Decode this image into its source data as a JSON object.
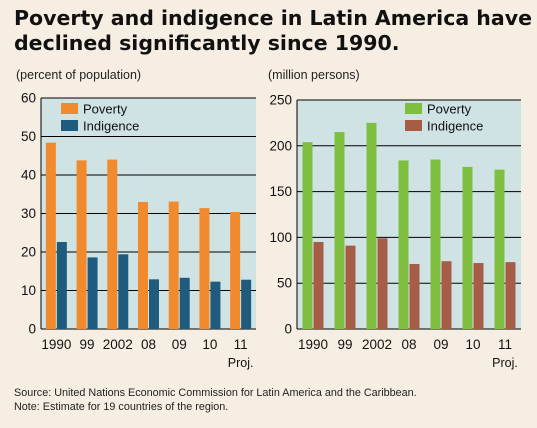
{
  "title_line1": "Poverty and indigence in Latin America have",
  "title_line2": "declined significantly since 1990.",
  "footer": {
    "source": "Source: United Nations Economic Commission for Latin America and the Caribbean.",
    "note": "Note: Estimate for 19 countries of the region."
  },
  "chart_data": [
    {
      "type": "bar",
      "unit_label": "(percent of population)",
      "categories": [
        "1990",
        "99",
        "2002",
        "08",
        "09",
        "10",
        "11"
      ],
      "projection_label": "Proj.",
      "ylim": [
        0,
        60
      ],
      "yticks": [
        0,
        10,
        20,
        30,
        40,
        50,
        60
      ],
      "grid": true,
      "legend": "top-left",
      "background": "#cfe3e4",
      "series": [
        {
          "name": "Poverty",
          "color": "#f08a2c",
          "values": [
            48.4,
            43.8,
            44.0,
            33.0,
            33.1,
            31.4,
            30.4
          ]
        },
        {
          "name": "Indigence",
          "color": "#1e5b7e",
          "values": [
            22.6,
            18.6,
            19.4,
            12.9,
            13.3,
            12.3,
            12.8
          ]
        }
      ]
    },
    {
      "type": "bar",
      "unit_label": "(million persons)",
      "categories": [
        "1990",
        "99",
        "2002",
        "08",
        "09",
        "10",
        "11"
      ],
      "projection_label": "Proj.",
      "ylim": [
        0,
        250
      ],
      "yticks": [
        0,
        50,
        100,
        150,
        200,
        250
      ],
      "grid": true,
      "legend": "top-right",
      "background": "#cfe3e4",
      "series": [
        {
          "name": "Poverty",
          "color": "#7fbf3f",
          "values": [
            204,
            215,
            225,
            184,
            185,
            177,
            174
          ]
        },
        {
          "name": "Indigence",
          "color": "#a65c45",
          "values": [
            95,
            91,
            99,
            71,
            74,
            72,
            73
          ]
        }
      ]
    }
  ]
}
